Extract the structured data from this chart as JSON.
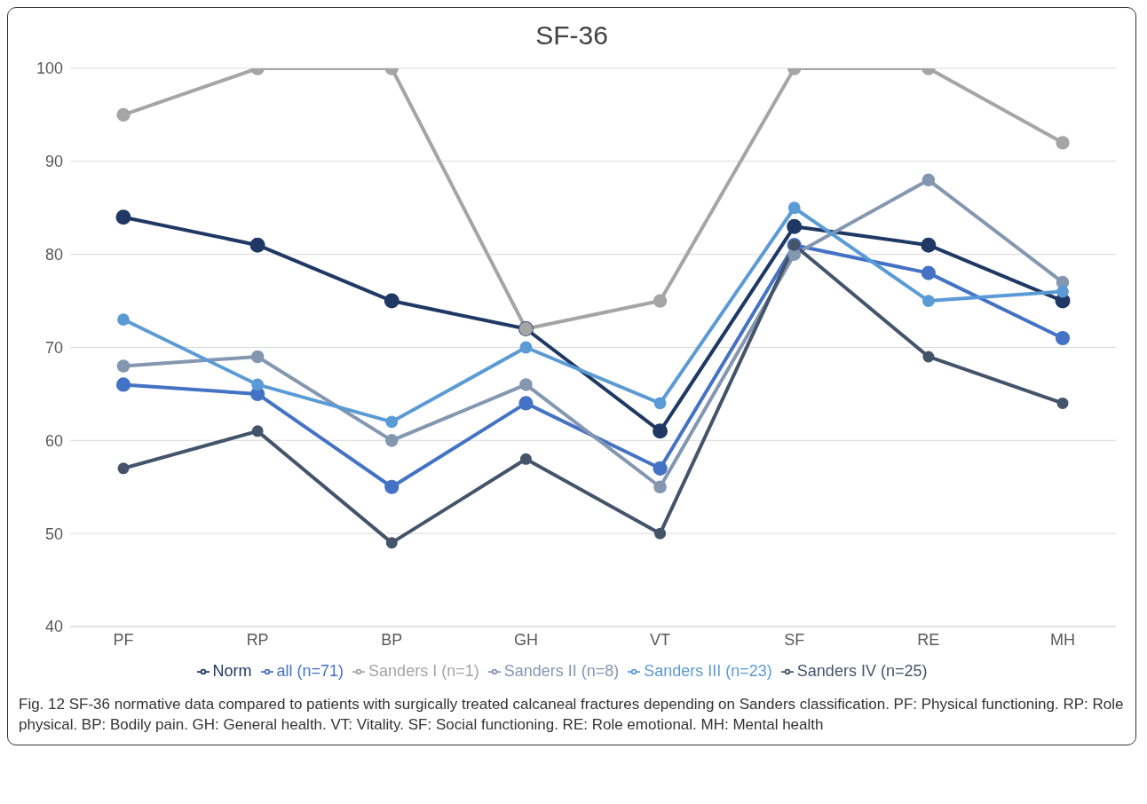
{
  "chart_data": {
    "type": "line",
    "title": "SF-36",
    "categories": [
      "PF",
      "RP",
      "BP",
      "GH",
      "VT",
      "SF",
      "RE",
      "MH"
    ],
    "series": [
      {
        "name": "Norm",
        "color": "#1f3864",
        "values": [
          84,
          81,
          75,
          72,
          61,
          83,
          81,
          75
        ]
      },
      {
        "name": "all (n=71)",
        "color": "#4472c4",
        "values": [
          66,
          65,
          55,
          64,
          57,
          81,
          78,
          71
        ]
      },
      {
        "name": "Sanders I (n=1)",
        "color": "#a5a5a5",
        "values": [
          95,
          100,
          100,
          72,
          75,
          100,
          100,
          92
        ]
      },
      {
        "name": "Sanders II (n=8)",
        "color": "#8497b0",
        "values": [
          68,
          69,
          60,
          66,
          55,
          80,
          88,
          77
        ]
      },
      {
        "name": "Sanders III (n=23)",
        "color": "#5b9bd5",
        "values": [
          73,
          66,
          62,
          70,
          64,
          85,
          75,
          76
        ]
      },
      {
        "name": "Sanders IV (n=25)",
        "color": "#44546a",
        "values": [
          57,
          61,
          49,
          58,
          50,
          81,
          69,
          64
        ]
      }
    ],
    "ylim": [
      40,
      100
    ],
    "yticks": [
      40,
      50,
      60,
      70,
      80,
      90,
      100
    ],
    "grid": "y",
    "legend": "bottom",
    "marker": "circle",
    "line_style": "solid",
    "annotations": [
      "Fig. 12 SF-36 normative data compared to patients with surgically treated calcaneal fractures depending on Sanders classification. PF: Physical functioning. RP: Role physical. BP: Bodily pain. GH: General health. VT: Vitality. SF: Social functioning. RE: Role emotional. MH: Mental health"
    ]
  }
}
